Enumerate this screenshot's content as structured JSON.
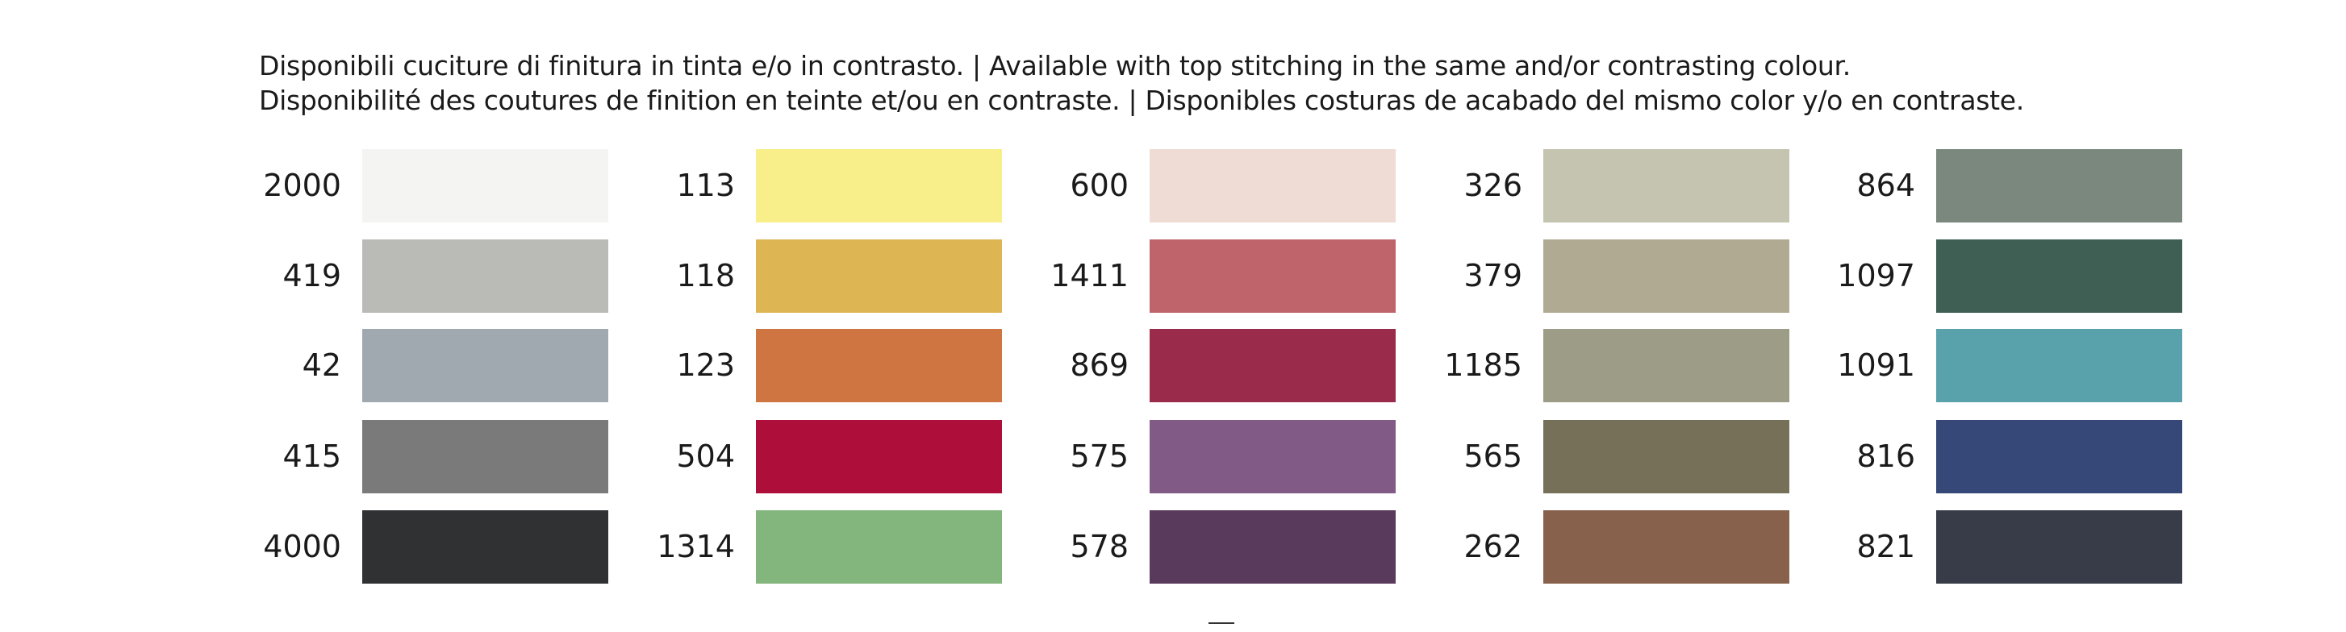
{
  "header": {
    "lines": [
      "Disponibili cuciture di finitura in tinta e/o in contrasto. | Available with top stitching in the same and/or contrasting colour.",
      "Disponibilité des coutures de finition en teinte et/ou en contraste. | Disponibles costuras de acabado del mismo color y/o en contraste."
    ]
  },
  "columns": [
    [
      {
        "code": "2000",
        "color": "#f4f4f3"
      },
      {
        "code": "419",
        "color": "#babab6"
      },
      {
        "code": "42",
        "color": "#a0a8b0"
      },
      {
        "code": "415",
        "color": "#7a7a7a"
      },
      {
        "code": "4000",
        "color": "#303133"
      }
    ],
    [
      {
        "code": "113",
        "color": "#f8ee8a"
      },
      {
        "code": "118",
        "color": "#deb553"
      },
      {
        "code": "123",
        "color": "#cf7542"
      },
      {
        "code": "504",
        "color": "#ad0f3a"
      },
      {
        "code": "1314",
        "color": "#83b67d"
      }
    ],
    [
      {
        "code": "600",
        "color": "#efdcd4"
      },
      {
        "code": "1411",
        "color": "#c0646b"
      },
      {
        "code": "869",
        "color": "#9a2b4a"
      },
      {
        "code": "575",
        "color": "#825a86"
      },
      {
        "code": "578",
        "color": "#5a3a5c"
      }
    ],
    [
      {
        "code": "326",
        "color": "#c5c4b0"
      },
      {
        "code": "379",
        "color": "#b0aa92"
      },
      {
        "code": "1185",
        "color": "#9d9c87"
      },
      {
        "code": "565",
        "color": "#767059"
      },
      {
        "code": "262",
        "color": "#87614b"
      }
    ],
    [
      {
        "code": "864",
        "color": "#7a887d"
      },
      {
        "code": "1097",
        "color": "#3f5f55"
      },
      {
        "code": "1091",
        "color": "#59a1ab"
      },
      {
        "code": "816",
        "color": "#364878"
      },
      {
        "code": "821",
        "color": "#383b48"
      }
    ]
  ]
}
